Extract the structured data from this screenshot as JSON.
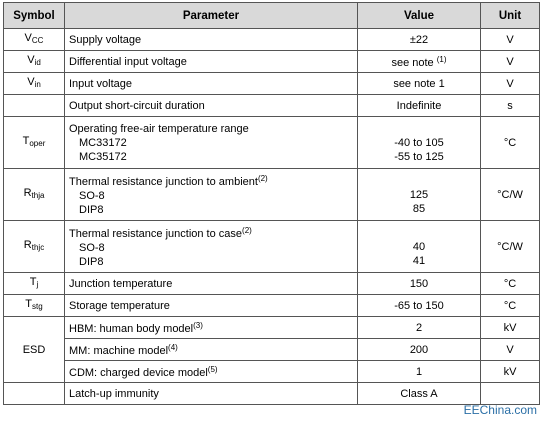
{
  "headers": {
    "symbol": "Symbol",
    "parameter": "Parameter",
    "value": "Value",
    "unit": "Unit"
  },
  "rows": {
    "vcc": {
      "sym": "V",
      "sub": "CC",
      "param": "Supply voltage",
      "value": "±22",
      "unit": "V"
    },
    "vid": {
      "sym": "V",
      "sub": "id",
      "param": "Differential input voltage",
      "value": "see note",
      "value_note": "(1)",
      "unit": "V"
    },
    "vin": {
      "sym": "V",
      "sub": "in",
      "param": "Input voltage",
      "value": "see note 1",
      "unit": "V"
    },
    "short": {
      "param": "Output short-circuit duration",
      "value": "Indefinite",
      "unit": "s"
    },
    "toper": {
      "sym": "T",
      "sub": "oper",
      "param": "Operating free-air temperature range",
      "line1": "MC33172",
      "val1": "-40 to 105",
      "line2": "MC35172",
      "val2": "-55 to 125",
      "unit": "°C"
    },
    "rthja": {
      "sym": "R",
      "sub": "thja",
      "param": "Thermal resistance junction to ambient",
      "note": "(2)",
      "line1": "SO-8",
      "val1": "125",
      "line2": "DIP8",
      "val2": "85",
      "unit": "°C/W"
    },
    "rthjc": {
      "sym": "R",
      "sub": "thjc",
      "param": "Thermal resistance junction to case",
      "note": "(2)",
      "line1": "SO-8",
      "val1": "40",
      "line2": "DIP8",
      "val2": "41",
      "unit": "°C/W"
    },
    "tj": {
      "sym": "T",
      "sub": "j",
      "param": "Junction temperature",
      "value": "150",
      "unit": "°C"
    },
    "tstg": {
      "sym": "T",
      "sub": "stg",
      "param": "Storage temperature",
      "value": "-65 to 150",
      "unit": "°C"
    },
    "esd": {
      "sym": "ESD",
      "hbm": {
        "param": "HBM: human body model",
        "note": "(3)",
        "value": "2",
        "unit": "kV"
      },
      "mm": {
        "param": "MM: machine model",
        "note": "(4)",
        "value": "200",
        "unit": "V"
      },
      "cdm": {
        "param": "CDM: charged device model",
        "note": "(5)",
        "value": "1",
        "unit": "kV"
      }
    },
    "latch": {
      "param": "Latch-up immunity",
      "value": "Class A",
      "unit": ""
    }
  },
  "watermark": "EEChina.com"
}
